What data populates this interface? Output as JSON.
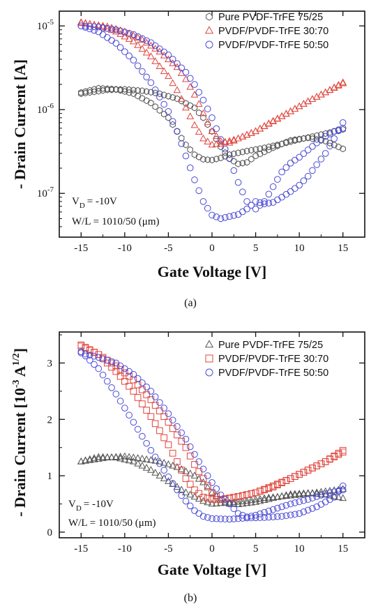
{
  "chart_data": [
    {
      "type": "scatter",
      "panel": "(a)",
      "xlabel": "Gate Voltage [V]",
      "ylabel": "- Drain Current [A]",
      "yscale": "log",
      "xlim": [
        -17.5,
        17.5
      ],
      "ylim": [
        3e-08,
        1.5e-05
      ],
      "xticks": [
        "-15",
        "-10",
        "-5",
        "0",
        "5",
        "10",
        "15"
      ],
      "yticks": [
        {
          "base": "10",
          "exp": "-7"
        },
        {
          "base": "10",
          "exp": "-6"
        },
        {
          "base": "10",
          "exp": "-5"
        }
      ],
      "legend": "top-right",
      "annotations": [
        "V",
        "D",
        "= -10V",
        "W/L = 1010/50 (μm)"
      ],
      "series": [
        {
          "name": "Pure PVDF-TrFE 75/25",
          "marker": "hexagon",
          "color": "#555555",
          "forward": [
            [
              -15,
              1.6e-06
            ],
            [
              -13,
              1.8e-06
            ],
            [
              -11,
              1.75e-06
            ],
            [
              -9,
              1.55e-06
            ],
            [
              -7,
              1.2e-06
            ],
            [
              -5,
              8e-07
            ],
            [
              -4,
              5.5e-07
            ],
            [
              -3,
              3.8e-07
            ],
            [
              -2,
              2.9e-07
            ],
            [
              -1,
              2.55e-07
            ],
            [
              0,
              2.5e-07
            ],
            [
              1,
              2.65e-07
            ],
            [
              2,
              2.9e-07
            ],
            [
              4,
              3.2e-07
            ],
            [
              6,
              3.5e-07
            ],
            [
              8,
              3.9e-07
            ],
            [
              10,
              4.4e-07
            ],
            [
              12,
              4.9e-07
            ],
            [
              15,
              5.8e-07
            ]
          ],
          "reverse": [
            [
              15,
              3.4e-07
            ],
            [
              13,
              4.2e-07
            ],
            [
              11,
              4.6e-07
            ],
            [
              9,
              4.3e-07
            ],
            [
              7,
              3.5e-07
            ],
            [
              5,
              2.8e-07
            ],
            [
              4,
              2.35e-07
            ],
            [
              3,
              2.25e-07
            ],
            [
              2,
              2.6e-07
            ],
            [
              1,
              3.6e-07
            ],
            [
              0,
              5.5e-07
            ],
            [
              -1,
              8e-07
            ],
            [
              -2,
              1.05e-06
            ],
            [
              -4,
              1.35e-06
            ],
            [
              -6,
              1.55e-06
            ],
            [
              -8,
              1.68e-06
            ],
            [
              -10,
              1.75e-06
            ],
            [
              -12,
              1.72e-06
            ],
            [
              -15,
              1.55e-06
            ]
          ]
        },
        {
          "name": "PVDF/PVDF-TrFE 30:70",
          "marker": "triangle",
          "color": "#e0443c",
          "forward": [
            [
              -15,
              1.1e-05
            ],
            [
              -13,
              1e-05
            ],
            [
              -11,
              8.5e-06
            ],
            [
              -9,
              6.5e-06
            ],
            [
              -7,
              4.3e-06
            ],
            [
              -5,
              2.5e-06
            ],
            [
              -4,
              1.7e-06
            ],
            [
              -3,
              1.05e-06
            ],
            [
              -2,
              6.5e-07
            ],
            [
              -1,
              4.5e-07
            ],
            [
              0,
              3.8e-07
            ],
            [
              1,
              3.9e-07
            ],
            [
              2,
              4.2e-07
            ],
            [
              3,
              4.5e-07
            ],
            [
              5,
              5.5e-07
            ],
            [
              7,
              7.2e-07
            ],
            [
              9,
              9.5e-07
            ],
            [
              11,
              1.25e-06
            ],
            [
              13,
              1.6e-06
            ],
            [
              15,
              2.1e-06
            ]
          ],
          "reverse": [
            [
              15,
              2.05e-06
            ],
            [
              13,
              1.6e-06
            ],
            [
              11,
              1.25e-06
            ],
            [
              9,
              9.5e-07
            ],
            [
              7,
              7.3e-07
            ],
            [
              5,
              5.5e-07
            ],
            [
              3,
              4.5e-07
            ],
            [
              2,
              4e-07
            ],
            [
              1,
              4.2e-07
            ],
            [
              0,
              5.5e-07
            ],
            [
              -1,
              9e-07
            ],
            [
              -2,
              1.5e-06
            ],
            [
              -3,
              2.3e-06
            ],
            [
              -4,
              3.2e-06
            ],
            [
              -6,
              4.9e-06
            ],
            [
              -8,
              6.8e-06
            ],
            [
              -10,
              8.5e-06
            ],
            [
              -12,
              9.8e-06
            ],
            [
              -15,
              1.08e-05
            ]
          ]
        },
        {
          "name": "PVDF/PVDF-TrFE 50:50",
          "marker": "circle",
          "color": "#4a4ad6",
          "forward": [
            [
              -15,
              1e-05
            ],
            [
              -13,
              8.5e-06
            ],
            [
              -11,
              6.2e-06
            ],
            [
              -9,
              3.9e-06
            ],
            [
              -7,
              2.1e-06
            ],
            [
              -5,
              9.5e-07
            ],
            [
              -4,
              5.5e-07
            ],
            [
              -3,
              2.8e-07
            ],
            [
              -2,
              1.45e-07
            ],
            [
              -1,
              8e-08
            ],
            [
              0,
              5.5e-08
            ],
            [
              1,
              5e-08
            ],
            [
              2,
              5.3e-08
            ],
            [
              3,
              5.6e-08
            ],
            [
              4,
              6.5e-08
            ],
            [
              5,
              8e-08
            ],
            [
              6,
              7.5e-08
            ],
            [
              7,
              7.8e-08
            ],
            [
              8,
              9e-08
            ],
            [
              9,
              1.05e-07
            ],
            [
              10,
              1.25e-07
            ],
            [
              11,
              1.6e-07
            ],
            [
              12,
              2.2e-07
            ],
            [
              13,
              3e-07
            ],
            [
              14,
              4.5e-07
            ],
            [
              15,
              7e-07
            ]
          ],
          "reverse": [
            [
              15,
              6e-07
            ],
            [
              14,
              5.5e-07
            ],
            [
              13,
              4.8e-07
            ],
            [
              12,
              4e-07
            ],
            [
              11,
              3.3e-07
            ],
            [
              10,
              2.7e-07
            ],
            [
              9,
              2.3e-07
            ],
            [
              8,
              1.8e-07
            ],
            [
              7,
              1.2e-07
            ],
            [
              6,
              8e-08
            ],
            [
              5,
              6.5e-08
            ],
            [
              4,
              8e-08
            ],
            [
              3,
              1.35e-07
            ],
            [
              2,
              2.6e-07
            ],
            [
              1,
              4.4e-07
            ],
            [
              0,
              8e-07
            ],
            [
              -1,
              1.3e-06
            ],
            [
              -2,
              2e-06
            ],
            [
              -3,
              2.8e-06
            ],
            [
              -5,
              4.5e-06
            ],
            [
              -7,
              6.3e-06
            ],
            [
              -9,
              7.9e-06
            ],
            [
              -11,
              9e-06
            ],
            [
              -13,
              9.7e-06
            ],
            [
              -15,
              1e-05
            ]
          ]
        }
      ]
    },
    {
      "type": "scatter",
      "panel": "(b)",
      "xlabel": "Gate Voltage [V]",
      "ylabel": "- Drain Current [10-3 A1/2]",
      "yscale": "linear",
      "xlim": [
        -17.5,
        17.5
      ],
      "ylim": [
        -0.1,
        3.55
      ],
      "xticks": [
        "-15",
        "-10",
        "-5",
        "0",
        "5",
        "10",
        "15"
      ],
      "yticks": [
        "0",
        "1",
        "2",
        "3"
      ],
      "legend": "top-right",
      "annotations": [
        "V",
        "D",
        "= -10V",
        "W/L = 1010/50 (μm)"
      ],
      "series": [
        {
          "name": "Pure PVDF-TrFE 75/25",
          "marker": "triangle",
          "color": "#555555",
          "forward": [
            [
              -15,
              1.25
            ],
            [
              -13,
              1.33
            ],
            [
              -11,
              1.32
            ],
            [
              -9,
              1.25
            ],
            [
              -7,
              1.1
            ],
            [
              -5,
              0.9
            ],
            [
              -3,
              0.7
            ],
            [
              -1,
              0.55
            ],
            [
              0,
              0.5
            ],
            [
              2,
              0.52
            ],
            [
              4,
              0.55
            ],
            [
              6,
              0.6
            ],
            [
              8,
              0.63
            ],
            [
              10,
              0.66
            ],
            [
              12,
              0.7
            ],
            [
              15,
              0.76
            ]
          ],
          "reverse": [
            [
              15,
              0.6
            ],
            [
              13,
              0.66
            ],
            [
              11,
              0.69
            ],
            [
              9,
              0.67
            ],
            [
              7,
              0.6
            ],
            [
              5,
              0.53
            ],
            [
              3,
              0.49
            ],
            [
              2,
              0.5
            ],
            [
              1,
              0.57
            ],
            [
              0,
              0.7
            ],
            [
              -1,
              0.88
            ],
            [
              -2,
              1.0
            ],
            [
              -4,
              1.15
            ],
            [
              -6,
              1.25
            ],
            [
              -8,
              1.3
            ],
            [
              -10,
              1.34
            ],
            [
              -12,
              1.32
            ],
            [
              -15,
              1.25
            ]
          ]
        },
        {
          "name": "PVDF/PVDF-TrFE 30:70",
          "marker": "square",
          "color": "#e0443c",
          "forward": [
            [
              -15,
              3.32
            ],
            [
              -13,
              3.15
            ],
            [
              -11,
              2.85
            ],
            [
              -9,
              2.5
            ],
            [
              -7,
              2.05
            ],
            [
              -5,
              1.55
            ],
            [
              -4,
              1.25
            ],
            [
              -3,
              0.95
            ],
            [
              -2,
              0.75
            ],
            [
              -1,
              0.62
            ],
            [
              0,
              0.58
            ],
            [
              1,
              0.58
            ],
            [
              2,
              0.6
            ],
            [
              3,
              0.63
            ],
            [
              5,
              0.7
            ],
            [
              7,
              0.8
            ],
            [
              9,
              0.95
            ],
            [
              11,
              1.1
            ],
            [
              13,
              1.25
            ],
            [
              15,
              1.45
            ]
          ],
          "reverse": [
            [
              15,
              1.42
            ],
            [
              13,
              1.25
            ],
            [
              11,
              1.1
            ],
            [
              9,
              0.95
            ],
            [
              7,
              0.82
            ],
            [
              5,
              0.7
            ],
            [
              3,
              0.63
            ],
            [
              1,
              0.58
            ],
            [
              0,
              0.7
            ],
            [
              -1,
              0.95
            ],
            [
              -2,
              1.2
            ],
            [
              -3,
              1.5
            ],
            [
              -5,
              1.95
            ],
            [
              -7,
              2.35
            ],
            [
              -9,
              2.7
            ],
            [
              -11,
              2.95
            ],
            [
              -13,
              3.15
            ],
            [
              -15,
              3.3
            ]
          ]
        },
        {
          "name": "PVDF/PVDF-TrFE 50:50",
          "marker": "circle",
          "color": "#4a4ad6",
          "forward": [
            [
              -15,
              3.2
            ],
            [
              -13,
              2.9
            ],
            [
              -11,
              2.45
            ],
            [
              -9,
              1.95
            ],
            [
              -7,
              1.45
            ],
            [
              -5,
              0.98
            ],
            [
              -4,
              0.75
            ],
            [
              -3,
              0.55
            ],
            [
              -2,
              0.38
            ],
            [
              -1,
              0.28
            ],
            [
              0,
              0.24
            ],
            [
              2,
              0.23
            ],
            [
              4,
              0.25
            ],
            [
              6,
              0.26
            ],
            [
              8,
              0.28
            ],
            [
              10,
              0.33
            ],
            [
              12,
              0.45
            ],
            [
              14,
              0.62
            ],
            [
              15,
              0.82
            ]
          ],
          "reverse": [
            [
              15,
              0.75
            ],
            [
              13,
              0.68
            ],
            [
              11,
              0.58
            ],
            [
              9,
              0.5
            ],
            [
              7,
              0.4
            ],
            [
              5,
              0.3
            ],
            [
              4,
              0.27
            ],
            [
              3,
              0.33
            ],
            [
              2,
              0.5
            ],
            [
              1,
              0.66
            ],
            [
              0,
              0.88
            ],
            [
              -1,
              1.12
            ],
            [
              -2,
              1.38
            ],
            [
              -3,
              1.65
            ],
            [
              -5,
              2.1
            ],
            [
              -7,
              2.5
            ],
            [
              -9,
              2.8
            ],
            [
              -11,
              3.0
            ],
            [
              -13,
              3.1
            ],
            [
              -15,
              3.18
            ]
          ]
        }
      ]
    }
  ]
}
